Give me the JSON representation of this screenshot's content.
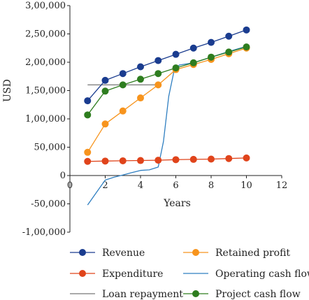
{
  "chart_data": {
    "type": "line",
    "xlabel": "Years",
    "ylabel": "USD",
    "xlim": [
      0,
      12
    ],
    "ylim": [
      -100000,
      300000
    ],
    "x_ticks": [
      0,
      2,
      4,
      6,
      8,
      10,
      12
    ],
    "x_tick_labels": [
      "0",
      "2",
      "4",
      "6",
      "8",
      "10",
      "12"
    ],
    "y_ticks": [
      300000,
      250000,
      200000,
      150000,
      100000,
      50000,
      0,
      -50000,
      -100000
    ],
    "y_tick_labels": [
      "3,00,000",
      "2,50,000",
      "2,00,000",
      "1,50,000",
      "1,00,000",
      "50,000",
      "0",
      "-50,000",
      "-1,00,000"
    ],
    "grid": false,
    "legend_position": "bottom",
    "series": [
      {
        "name": "Revenue",
        "color": "#1a3c8f",
        "style": "line-markers",
        "x": [
          1,
          2,
          3,
          4,
          5,
          6,
          7,
          8,
          9,
          10
        ],
        "values": [
          132000,
          168000,
          180000,
          192000,
          203000,
          214000,
          225000,
          235000,
          246000,
          257000
        ]
      },
      {
        "name": "Retained profit",
        "color": "#f7941d",
        "style": "line-markers",
        "x": [
          1,
          2,
          3,
          4,
          5,
          6,
          7,
          8,
          9,
          10
        ],
        "values": [
          41000,
          91000,
          114000,
          137000,
          160000,
          187000,
          196000,
          205000,
          215000,
          225000
        ]
      },
      {
        "name": "Expenditure",
        "color": "#e0441b",
        "style": "line-markers",
        "x": [
          1,
          2,
          3,
          4,
          5,
          6,
          7,
          8,
          9,
          10
        ],
        "values": [
          25000,
          25500,
          26000,
          26500,
          27000,
          28000,
          28500,
          29000,
          30000,
          31000
        ]
      },
      {
        "name": "Operating cash flow",
        "color": "#2f7fc1",
        "style": "line",
        "x": [
          1,
          1.5,
          2,
          2.5,
          3,
          3.5,
          4,
          4.5,
          5,
          5.3,
          5.6,
          5.9,
          6.2,
          7,
          8,
          9,
          10
        ],
        "values": [
          -52000,
          -30000,
          -8000,
          -3000,
          1000,
          5000,
          9000,
          10000,
          15000,
          60000,
          140000,
          185000,
          195000,
          199000,
          209000,
          219000,
          228000
        ]
      },
      {
        "name": "Loan repayment",
        "color": "#777777",
        "style": "line",
        "x": [
          1,
          5
        ],
        "values": [
          160000,
          160000
        ]
      },
      {
        "name": "Project cash flow",
        "color": "#2e7d1f",
        "style": "line-markers",
        "x": [
          1,
          2,
          3,
          4,
          5,
          6,
          7,
          8,
          9,
          10
        ],
        "values": [
          107000,
          149000,
          160000,
          170000,
          180000,
          190000,
          199000,
          209000,
          218000,
          227000
        ]
      }
    ],
    "legend_order": [
      0,
      1,
      2,
      3,
      4,
      5
    ]
  }
}
